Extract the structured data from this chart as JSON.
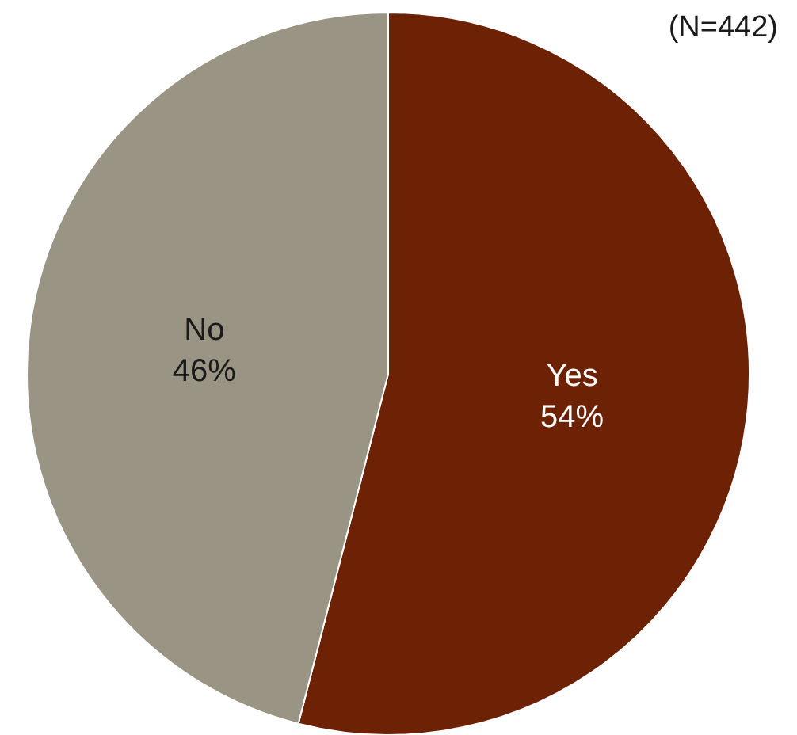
{
  "chart_data": {
    "type": "pie",
    "categories": [
      "Yes",
      "No"
    ],
    "values": [
      54,
      46
    ],
    "colors": [
      "#6e2205",
      "#999484"
    ],
    "value_labels": [
      "54%",
      "46%"
    ],
    "annotations": [
      "(N=442)"
    ],
    "legend": false
  }
}
